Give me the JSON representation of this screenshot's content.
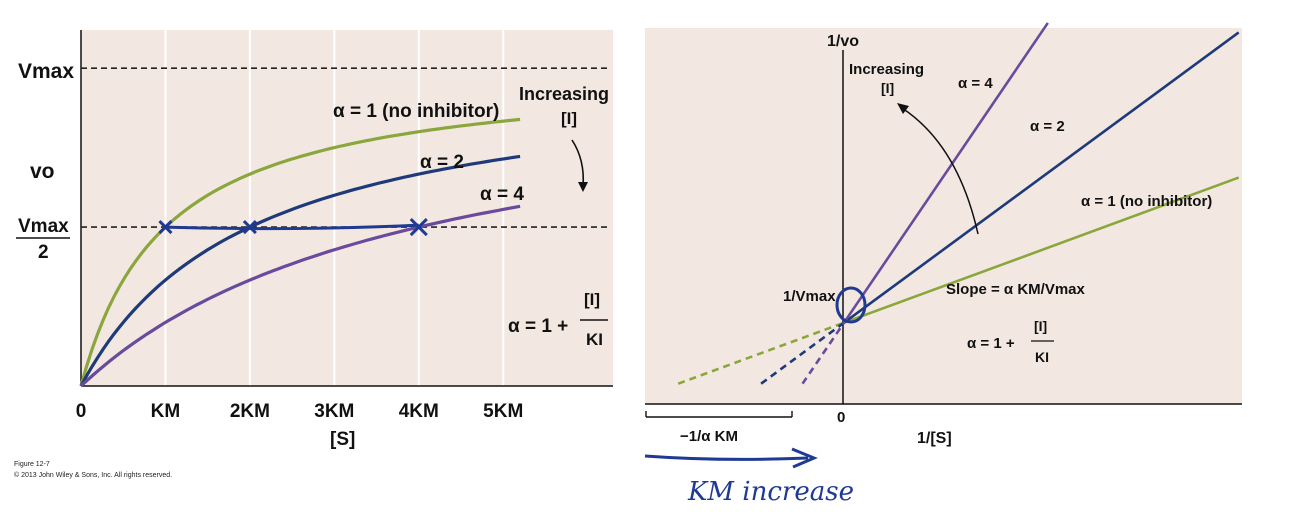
{
  "chart_data": [
    {
      "type": "line",
      "title": "",
      "xlabel": "[S]",
      "ylabel": "vo",
      "y_ticks": {
        "vmax": "Vmax",
        "vo": "vo",
        "half_num": "Vmax",
        "half_den": "2"
      },
      "x_ticks": [
        "0",
        "KM",
        "2KM",
        "3KM",
        "4KM",
        "5KM"
      ],
      "x_tick_values": [
        0,
        1,
        2,
        3,
        4,
        5
      ],
      "xlim": [
        0,
        6.3
      ],
      "ylim": [
        0,
        1.12
      ],
      "vmax": 1.0,
      "x_max_curve": 5.2,
      "grid": "vertical",
      "series": [
        {
          "name": "α = 1 (no inhibitor)",
          "alpha": 1,
          "color": "#8aa63c"
        },
        {
          "name": "α = 2",
          "alpha": 2,
          "color": "#1f3a7a"
        },
        {
          "name": "α = 4",
          "alpha": 4,
          "color": "#6a4a9c"
        }
      ],
      "annotations": {
        "increasing": "Increasing",
        "inhibitor": "[I]",
        "formula_lhs": "α = 1 +",
        "formula_num": "[I]",
        "formula_den": "KI"
      },
      "colors": {
        "background": "#f2e8e1",
        "gridline": "#ffffff",
        "dashed": "#222222"
      }
    },
    {
      "type": "line",
      "title": "",
      "xlabel": "1/[S]",
      "ylabel": "1/vo",
      "intercept_label": "1/Vmax",
      "origin_label": "0",
      "x_intercept_label": "−1/α KM",
      "xlim": [
        -1.2,
        2.4
      ],
      "ylim": [
        -0.2,
        3.5
      ],
      "km": 1.0,
      "inv_vmax": 0.6,
      "series": [
        {
          "name": "α = 1 (no inhibitor)",
          "alpha": 1,
          "color": "#8aa63c"
        },
        {
          "name": "α = 2",
          "alpha": 2,
          "color": "#1f3a7a"
        },
        {
          "name": "α = 4",
          "alpha": 4,
          "color": "#6a4a9c"
        }
      ],
      "annotations": {
        "increasing": "Increasing",
        "inhibitor": "[I]",
        "slope": "Slope = α KM/Vmax",
        "formula_lhs": "α = 1 +",
        "formula_num": "[I]",
        "formula_den": "KI"
      },
      "colors": {
        "background": "#f2e8e1"
      }
    }
  ],
  "caption": {
    "line1": "Figure 12-7",
    "line2": "© 2013 John Wiley & Sons, Inc. All rights reserved."
  },
  "handwriting": {
    "note": "KM increase",
    "color": "#1f3a93"
  }
}
